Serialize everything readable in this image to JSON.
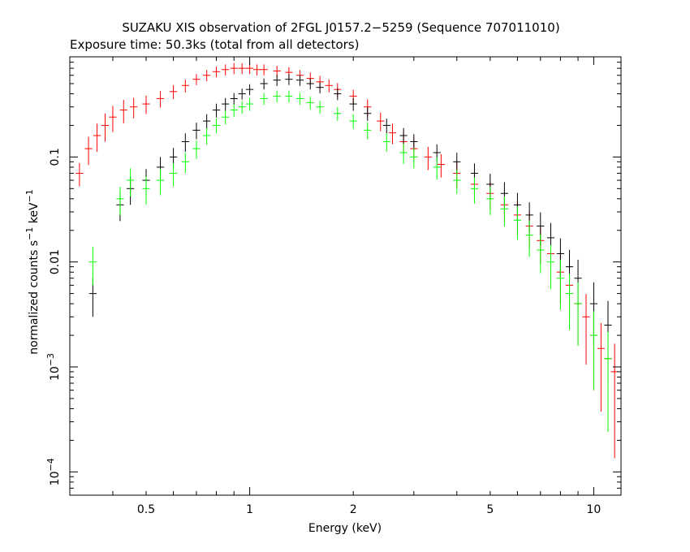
{
  "chart_data": {
    "type": "scatter",
    "title": "SUZAKU XIS observation of 2FGL J0157.2−5259 (Sequence 707011010)",
    "subtitle": "Exposure time: 50.3ks (total from all detectors)",
    "xlabel": "Energy (keV)",
    "ylabel_parts": [
      "normalized counts s",
      "−1",
      " keV",
      "−1"
    ],
    "x_scale": "log",
    "y_scale": "log",
    "xlim": [
      0.3,
      12
    ],
    "ylim": [
      6e-05,
      0.9
    ],
    "x_ticks": [
      {
        "value": 0.5,
        "label": "0.5"
      },
      {
        "value": 1,
        "label": "1"
      },
      {
        "value": 2,
        "label": "2"
      },
      {
        "value": 5,
        "label": "5"
      },
      {
        "value": 10,
        "label": "10"
      }
    ],
    "y_ticks": [
      {
        "value": 0.1,
        "base": "0.1",
        "exp": ""
      },
      {
        "value": 0.01,
        "base": "0.01",
        "exp": ""
      },
      {
        "value": 0.001,
        "base": "10",
        "exp": "−3"
      },
      {
        "value": 0.0001,
        "base": "10",
        "exp": "−4"
      }
    ],
    "grid": false,
    "series": [
      {
        "color": "#ff0000",
        "points": [
          [
            0.32,
            0.07,
            0.25
          ],
          [
            0.34,
            0.12,
            0.3
          ],
          [
            0.36,
            0.16,
            0.3
          ],
          [
            0.38,
            0.2,
            0.3
          ],
          [
            0.4,
            0.24,
            0.28
          ],
          [
            0.43,
            0.28,
            0.25
          ],
          [
            0.46,
            0.3,
            0.22
          ],
          [
            0.5,
            0.32,
            0.2
          ],
          [
            0.55,
            0.36,
            0.18
          ],
          [
            0.6,
            0.42,
            0.15
          ],
          [
            0.65,
            0.48,
            0.14
          ],
          [
            0.7,
            0.55,
            0.12
          ],
          [
            0.75,
            0.6,
            0.12
          ],
          [
            0.8,
            0.65,
            0.12
          ],
          [
            0.85,
            0.68,
            0.12
          ],
          [
            0.9,
            0.7,
            0.12
          ],
          [
            0.95,
            0.7,
            0.12
          ],
          [
            1.0,
            0.7,
            0.12
          ],
          [
            1.05,
            0.68,
            0.12
          ],
          [
            1.1,
            0.68,
            0.12
          ],
          [
            1.2,
            0.66,
            0.12
          ],
          [
            1.3,
            0.64,
            0.12
          ],
          [
            1.4,
            0.6,
            0.12
          ],
          [
            1.5,
            0.56,
            0.14
          ],
          [
            1.6,
            0.52,
            0.14
          ],
          [
            1.7,
            0.48,
            0.14
          ],
          [
            1.8,
            0.44,
            0.15
          ],
          [
            2.0,
            0.38,
            0.15
          ],
          [
            2.2,
            0.3,
            0.18
          ],
          [
            2.4,
            0.22,
            0.2
          ],
          [
            2.6,
            0.17,
            0.22
          ],
          [
            2.8,
            0.14,
            0.22
          ],
          [
            3.0,
            0.12,
            0.24
          ],
          [
            3.3,
            0.1,
            0.25
          ],
          [
            3.6,
            0.085,
            0.25
          ],
          [
            4.0,
            0.07,
            0.28
          ],
          [
            4.5,
            0.055,
            0.3
          ],
          [
            5.0,
            0.045,
            0.3
          ],
          [
            5.5,
            0.035,
            0.32
          ],
          [
            6.0,
            0.028,
            0.35
          ],
          [
            6.5,
            0.022,
            0.38
          ],
          [
            7.0,
            0.016,
            0.4
          ],
          [
            7.5,
            0.012,
            0.45
          ],
          [
            8.0,
            0.008,
            0.5
          ],
          [
            8.5,
            0.006,
            0.55
          ],
          [
            9.0,
            0.004,
            0.6
          ],
          [
            9.5,
            0.003,
            0.65
          ],
          [
            10.0,
            0.002,
            0.7
          ],
          [
            10.5,
            0.0015,
            0.75
          ],
          [
            11.0,
            0.0012,
            0.8
          ],
          [
            11.5,
            0.0009,
            0.85
          ]
        ]
      },
      {
        "color": "#000000",
        "points": [
          [
            0.35,
            0.005,
            0.4
          ],
          [
            0.42,
            0.035,
            0.3
          ],
          [
            0.45,
            0.05,
            0.3
          ],
          [
            0.5,
            0.06,
            0.28
          ],
          [
            0.55,
            0.08,
            0.25
          ],
          [
            0.6,
            0.1,
            0.22
          ],
          [
            0.65,
            0.14,
            0.2
          ],
          [
            0.7,
            0.18,
            0.18
          ],
          [
            0.75,
            0.22,
            0.16
          ],
          [
            0.8,
            0.28,
            0.15
          ],
          [
            0.85,
            0.32,
            0.14
          ],
          [
            0.9,
            0.36,
            0.13
          ],
          [
            0.95,
            0.4,
            0.12
          ],
          [
            1.0,
            0.44,
            0.12
          ],
          [
            1.1,
            0.5,
            0.12
          ],
          [
            1.2,
            0.54,
            0.12
          ],
          [
            1.3,
            0.55,
            0.12
          ],
          [
            1.4,
            0.54,
            0.12
          ],
          [
            1.5,
            0.5,
            0.12
          ],
          [
            1.6,
            0.46,
            0.12
          ],
          [
            1.8,
            0.4,
            0.13
          ],
          [
            2.0,
            0.32,
            0.14
          ],
          [
            2.2,
            0.26,
            0.15
          ],
          [
            2.5,
            0.2,
            0.16
          ],
          [
            2.8,
            0.16,
            0.18
          ],
          [
            3.0,
            0.14,
            0.18
          ],
          [
            3.5,
            0.11,
            0.2
          ],
          [
            4.0,
            0.09,
            0.22
          ],
          [
            4.5,
            0.07,
            0.24
          ],
          [
            5.0,
            0.055,
            0.26
          ],
          [
            5.5,
            0.045,
            0.28
          ],
          [
            6.0,
            0.035,
            0.3
          ],
          [
            6.5,
            0.028,
            0.32
          ],
          [
            7.0,
            0.022,
            0.35
          ],
          [
            7.5,
            0.017,
            0.38
          ],
          [
            8.0,
            0.012,
            0.4
          ],
          [
            8.5,
            0.009,
            0.45
          ],
          [
            9.0,
            0.007,
            0.5
          ],
          [
            10.0,
            0.004,
            0.6
          ],
          [
            11.0,
            0.0025,
            0.7
          ]
        ]
      },
      {
        "color": "#00ff00",
        "points": [
          [
            0.35,
            0.01,
            0.4
          ],
          [
            0.42,
            0.04,
            0.3
          ],
          [
            0.45,
            0.06,
            0.3
          ],
          [
            0.5,
            0.05,
            0.3
          ],
          [
            0.55,
            0.06,
            0.28
          ],
          [
            0.6,
            0.07,
            0.25
          ],
          [
            0.65,
            0.09,
            0.22
          ],
          [
            0.7,
            0.12,
            0.2
          ],
          [
            0.75,
            0.16,
            0.18
          ],
          [
            0.8,
            0.2,
            0.16
          ],
          [
            0.85,
            0.24,
            0.15
          ],
          [
            0.9,
            0.28,
            0.14
          ],
          [
            0.95,
            0.3,
            0.14
          ],
          [
            1.0,
            0.32,
            0.14
          ],
          [
            1.1,
            0.36,
            0.13
          ],
          [
            1.2,
            0.38,
            0.13
          ],
          [
            1.3,
            0.38,
            0.13
          ],
          [
            1.4,
            0.36,
            0.13
          ],
          [
            1.5,
            0.33,
            0.14
          ],
          [
            1.6,
            0.3,
            0.14
          ],
          [
            1.8,
            0.26,
            0.15
          ],
          [
            2.0,
            0.22,
            0.16
          ],
          [
            2.2,
            0.18,
            0.18
          ],
          [
            2.5,
            0.14,
            0.2
          ],
          [
            2.8,
            0.11,
            0.22
          ],
          [
            3.0,
            0.1,
            0.22
          ],
          [
            3.5,
            0.08,
            0.24
          ],
          [
            4.0,
            0.06,
            0.26
          ],
          [
            4.5,
            0.05,
            0.28
          ],
          [
            5.0,
            0.04,
            0.3
          ],
          [
            5.5,
            0.032,
            0.32
          ],
          [
            6.0,
            0.025,
            0.35
          ],
          [
            6.5,
            0.018,
            0.38
          ],
          [
            7.0,
            0.013,
            0.4
          ],
          [
            7.5,
            0.01,
            0.45
          ],
          [
            8.0,
            0.007,
            0.5
          ],
          [
            8.5,
            0.005,
            0.55
          ],
          [
            9.0,
            0.004,
            0.6
          ],
          [
            10.0,
            0.002,
            0.7
          ],
          [
            11.0,
            0.0012,
            0.8
          ]
        ]
      }
    ]
  }
}
